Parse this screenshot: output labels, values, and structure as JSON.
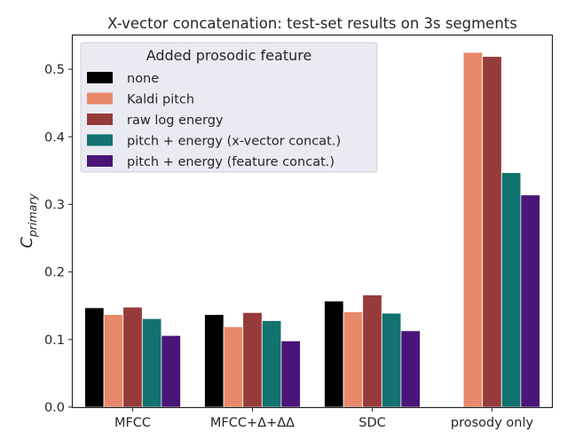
{
  "chart_data": {
    "type": "bar",
    "title": "X-vector concatenation: test-set results on 3s segments",
    "ylabel_main": "C",
    "ylabel_sub": "primary",
    "xlabel": "",
    "categories": [
      "MFCC",
      "MFCC+Δ+ΔΔ",
      "SDC",
      "prosody only"
    ],
    "ylim": [
      0,
      0.55
    ],
    "yticks": [
      "0.0",
      "0.1",
      "0.2",
      "0.3",
      "0.4",
      "0.5"
    ],
    "ytick_values": [
      0.0,
      0.1,
      0.2,
      0.3,
      0.4,
      0.5
    ],
    "grid": false,
    "legend": {
      "title": "Added prosodic feature",
      "placement": "top-left"
    },
    "series": [
      {
        "name": "none",
        "color": "#000000",
        "values": [
          0.147,
          0.137,
          0.157,
          null
        ]
      },
      {
        "name": "Kaldi pitch",
        "color": "#e8896a",
        "values": [
          0.137,
          0.119,
          0.141,
          0.525
        ]
      },
      {
        "name": "raw log energy",
        "color": "#973a3a",
        "values": [
          0.148,
          0.14,
          0.166,
          0.519
        ]
      },
      {
        "name": "pitch + energy (x-vector concat.)",
        "color": "#127270",
        "values": [
          0.131,
          0.128,
          0.139,
          0.347
        ]
      },
      {
        "name": "pitch + energy (feature concat.)",
        "color": "#4a1478",
        "values": [
          0.106,
          0.098,
          0.113,
          0.314
        ]
      }
    ]
  }
}
